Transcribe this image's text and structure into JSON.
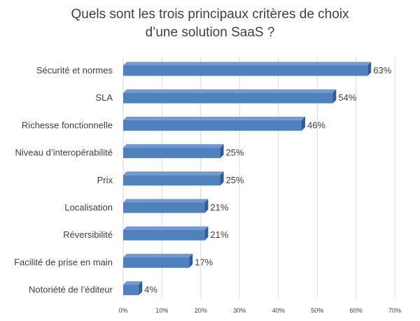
{
  "chart_data": {
    "type": "bar",
    "orientation": "horizontal",
    "title_lines": [
      "Quels sont les trois principaux critères de choix",
      "d’une solution SaaS ?"
    ],
    "categories": [
      "Sécurité et normes",
      "SLA",
      "Richesse fonctionnelle",
      "Niveau d’interopérabilité",
      "Prix",
      "Localisation",
      "Réversibilité",
      "Facilité de prise en main",
      "Notoriété de l’éditeur"
    ],
    "values": [
      63,
      54,
      46,
      25,
      25,
      21,
      21,
      17,
      4
    ],
    "value_labels": [
      "63%",
      "54%",
      "46%",
      "25%",
      "25%",
      "21%",
      "21%",
      "17%",
      "4%"
    ],
    "xlim": [
      0,
      70
    ],
    "x_ticks": [
      "0%",
      "10%",
      "20%",
      "30%",
      "40%",
      "50%",
      "60%",
      "70%"
    ],
    "grid": true,
    "colors": {
      "bar_front": "#4f81bd",
      "bar_top": "#6f9bd4",
      "bar_side": "#2f5d93",
      "grid": "#d9d9d9",
      "text": "#404040"
    }
  }
}
